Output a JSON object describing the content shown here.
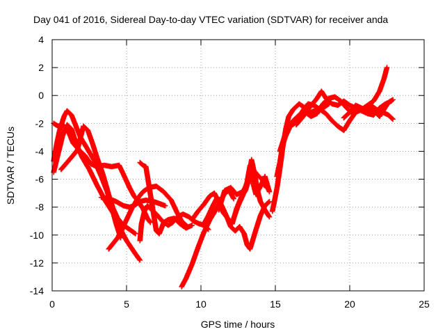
{
  "chart_data": {
    "type": "scatter",
    "title": "Day 041 of 2016, Sidereal Day-to-day VTEC variation (SDTVAR) for receiver anda",
    "xlabel": "GPS time / hours",
    "ylabel": "SDTVAR / TECUs",
    "xlim": [
      0,
      25
    ],
    "ylim": [
      -14,
      4
    ],
    "xticks": [
      0,
      5,
      10,
      15,
      20,
      25
    ],
    "yticks": [
      -14,
      -12,
      -10,
      -8,
      -6,
      -4,
      -2,
      0,
      2,
      4
    ],
    "grid": true,
    "marker": "plus",
    "color": "#ff0000",
    "series": [
      {
        "points": [
          [
            0.1,
            -4.7
          ],
          [
            0.3,
            -3.5
          ],
          [
            0.5,
            -2.5
          ],
          [
            0.8,
            -1.5
          ],
          [
            1.0,
            -1.1
          ],
          [
            1.3,
            -1.4
          ],
          [
            1.6,
            -2.2
          ],
          [
            1.9,
            -3.0
          ],
          [
            2.3,
            -3.7
          ],
          [
            2.8,
            -4.6
          ],
          [
            3.3,
            -5.8
          ],
          [
            3.7,
            -6.9
          ],
          [
            4.0,
            -8.0
          ],
          [
            4.3,
            -9.2
          ],
          [
            4.6,
            -10.2
          ]
        ]
      },
      {
        "points": [
          [
            0.1,
            -5.5
          ],
          [
            0.4,
            -4.2
          ],
          [
            0.7,
            -2.9
          ],
          [
            1.0,
            -2.1
          ],
          [
            1.3,
            -2.4
          ],
          [
            1.6,
            -3.4
          ],
          [
            2.0,
            -4.4
          ],
          [
            2.5,
            -5.3
          ],
          [
            3.0,
            -6.4
          ],
          [
            3.6,
            -7.6
          ],
          [
            4.2,
            -8.6
          ],
          [
            4.6,
            -9.6
          ],
          [
            5.0,
            -10.4
          ],
          [
            5.5,
            -11.2
          ],
          [
            5.9,
            -11.8
          ]
        ]
      },
      {
        "points": [
          [
            0.1,
            -2.0
          ],
          [
            0.4,
            -2.2
          ],
          [
            0.7,
            -2.1
          ],
          [
            0.9,
            -2.3
          ],
          [
            1.1,
            -2.6
          ],
          [
            1.4,
            -3.4
          ],
          [
            1.8,
            -3.9
          ],
          [
            2.2,
            -4.3
          ],
          [
            2.6,
            -4.9
          ],
          [
            3.0,
            -5.1
          ],
          [
            3.5,
            -5.0
          ],
          [
            4.0,
            -5.1
          ],
          [
            4.5,
            -5.0
          ],
          [
            4.9,
            -5.9
          ],
          [
            5.2,
            -6.6
          ],
          [
            5.5,
            -7.2
          ],
          [
            5.8,
            -7.6
          ],
          [
            6.1,
            -8.1
          ],
          [
            6.4,
            -8.8
          ],
          [
            6.6,
            -9.1
          ]
        ]
      },
      {
        "points": [
          [
            0.6,
            -5.3
          ],
          [
            1.0,
            -4.8
          ],
          [
            1.4,
            -4.3
          ],
          [
            1.7,
            -3.9
          ],
          [
            2.1,
            -2.2
          ],
          [
            2.4,
            -2.5
          ],
          [
            2.7,
            -3.4
          ],
          [
            3.0,
            -4.4
          ],
          [
            3.4,
            -5.6
          ],
          [
            3.8,
            -7.1
          ],
          [
            4.1,
            -8.1
          ],
          [
            4.4,
            -8.8
          ],
          [
            4.8,
            -9.3
          ],
          [
            5.2,
            -9.6
          ],
          [
            5.6,
            -9.9
          ]
        ]
      },
      {
        "points": [
          [
            3.3,
            -7.3
          ],
          [
            3.8,
            -7.4
          ],
          [
            4.3,
            -7.6
          ],
          [
            4.8,
            -7.9
          ],
          [
            5.2,
            -8.0
          ],
          [
            5.5,
            -7.9
          ],
          [
            5.9,
            -7.6
          ],
          [
            6.3,
            -7.5
          ],
          [
            6.8,
            -7.6
          ],
          [
            7.1,
            -7.7
          ],
          [
            7.6,
            -7.9
          ]
        ]
      },
      {
        "points": [
          [
            3.8,
            -11.0
          ],
          [
            4.1,
            -10.6
          ],
          [
            4.4,
            -10.2
          ],
          [
            4.7,
            -9.6
          ],
          [
            5.0,
            -8.9
          ],
          [
            5.4,
            -8.0
          ],
          [
            5.8,
            -7.3
          ],
          [
            6.1,
            -6.9
          ],
          [
            6.5,
            -6.6
          ],
          [
            7.0,
            -6.5
          ],
          [
            7.5,
            -6.9
          ],
          [
            8.0,
            -7.5
          ],
          [
            8.4,
            -8.4
          ],
          [
            8.7,
            -9.0
          ],
          [
            9.1,
            -9.4
          ]
        ]
      },
      {
        "points": [
          [
            5.9,
            -10.4
          ],
          [
            6.0,
            -9.2
          ],
          [
            6.2,
            -8.3
          ],
          [
            6.4,
            -7.9
          ],
          [
            6.7,
            -8.2
          ],
          [
            7.0,
            -8.5
          ],
          [
            7.4,
            -9.0
          ],
          [
            7.8,
            -9.3
          ],
          [
            8.1,
            -9.1
          ],
          [
            8.4,
            -8.7
          ],
          [
            8.8,
            -8.5
          ],
          [
            9.2,
            -8.7
          ],
          [
            9.5,
            -9.0
          ],
          [
            9.9,
            -9.2
          ],
          [
            10.2,
            -9.3
          ],
          [
            10.5,
            -9.6
          ]
        ]
      },
      {
        "points": [
          [
            5.9,
            -4.8
          ],
          [
            6.1,
            -5.0
          ],
          [
            6.3,
            -5.1
          ],
          [
            7.0,
            -9.7
          ],
          [
            7.2,
            -9.9
          ],
          [
            7.5,
            -9.1
          ],
          [
            7.8,
            -8.9
          ],
          [
            8.2,
            -8.8
          ],
          [
            8.6,
            -9.2
          ],
          [
            9.0,
            -9.5
          ],
          [
            9.4,
            -9.3
          ]
        ]
      },
      {
        "points": [
          [
            8.7,
            -13.7
          ],
          [
            9.0,
            -13.1
          ],
          [
            9.4,
            -12.1
          ],
          [
            9.8,
            -10.9
          ],
          [
            10.2,
            -9.8
          ],
          [
            10.6,
            -8.9
          ],
          [
            11.0,
            -8.2
          ],
          [
            11.3,
            -7.6
          ],
          [
            11.6,
            -7.0
          ],
          [
            11.9,
            -6.8
          ],
          [
            12.2,
            -7.4
          ]
        ]
      },
      {
        "points": [
          [
            9.4,
            -8.9
          ],
          [
            9.8,
            -8.3
          ],
          [
            10.2,
            -7.8
          ],
          [
            10.6,
            -7.2
          ],
          [
            10.9,
            -7.0
          ],
          [
            11.2,
            -7.6
          ],
          [
            11.5,
            -8.4
          ],
          [
            11.8,
            -8.8
          ],
          [
            12.1,
            -9.2
          ],
          [
            12.4,
            -8.1
          ],
          [
            12.7,
            -7.3
          ],
          [
            13.0,
            -6.8
          ],
          [
            13.2,
            -6.0
          ],
          [
            13.4,
            -4.6
          ],
          [
            13.6,
            -5.6
          ],
          [
            13.8,
            -6.8
          ],
          [
            14.0,
            -7.6
          ],
          [
            14.3,
            -8.2
          ],
          [
            14.6,
            -8.7
          ]
        ]
      },
      {
        "points": [
          [
            10.2,
            -9.2
          ],
          [
            10.5,
            -8.6
          ],
          [
            10.8,
            -7.9
          ],
          [
            11.1,
            -7.3
          ],
          [
            11.4,
            -7.9
          ],
          [
            11.7,
            -8.6
          ],
          [
            12.0,
            -9.4
          ],
          [
            12.3,
            -9.7
          ],
          [
            12.6,
            -9.4
          ],
          [
            12.9,
            -9.9
          ],
          [
            13.1,
            -10.7
          ],
          [
            13.3,
            -11.0
          ],
          [
            13.5,
            -10.3
          ],
          [
            13.7,
            -9.6
          ],
          [
            14.0,
            -8.6
          ],
          [
            14.3,
            -7.9
          ],
          [
            14.6,
            -7.6
          ]
        ]
      },
      {
        "points": [
          [
            11.2,
            -8.2
          ],
          [
            11.6,
            -6.8
          ],
          [
            12.0,
            -6.6
          ],
          [
            12.4,
            -7.1
          ],
          [
            12.8,
            -6.9
          ],
          [
            13.2,
            -6.2
          ],
          [
            13.5,
            -5.3
          ],
          [
            13.8,
            -5.7
          ],
          [
            14.1,
            -6.0
          ],
          [
            14.4,
            -6.6
          ]
        ]
      },
      {
        "points": [
          [
            12.2,
            -8.8
          ],
          [
            12.5,
            -7.9
          ],
          [
            12.8,
            -7.2
          ],
          [
            13.1,
            -6.2
          ],
          [
            13.3,
            -5.0
          ],
          [
            13.5,
            -6.3
          ],
          [
            13.7,
            -7.1
          ],
          [
            14.0,
            -6.5
          ],
          [
            14.3,
            -5.8
          ],
          [
            14.6,
            -6.9
          ]
        ]
      },
      {
        "points": [
          [
            14.8,
            -8.3
          ],
          [
            15.1,
            -6.7
          ],
          [
            15.3,
            -5.3
          ],
          [
            15.5,
            -3.7
          ],
          [
            15.7,
            -2.4
          ],
          [
            15.9,
            -1.5
          ],
          [
            16.2,
            -1.0
          ],
          [
            16.6,
            -0.6
          ],
          [
            17.0,
            -0.9
          ],
          [
            17.4,
            -1.2
          ],
          [
            17.8,
            -1.0
          ],
          [
            18.2,
            -0.9
          ],
          [
            18.6,
            -0.6
          ]
        ]
      },
      {
        "points": [
          [
            15.1,
            -5.8
          ],
          [
            15.3,
            -4.8
          ],
          [
            15.5,
            -3.5
          ],
          [
            15.7,
            -2.9
          ],
          [
            16.0,
            -2.2
          ],
          [
            16.3,
            -2.0
          ],
          [
            16.6,
            -1.5
          ],
          [
            16.9,
            -1.0
          ],
          [
            17.2,
            -0.6
          ],
          [
            17.6,
            -0.7
          ],
          [
            18.0,
            -1.0
          ],
          [
            18.4,
            -1.3
          ],
          [
            18.8,
            -1.8
          ],
          [
            19.2,
            -2.2
          ],
          [
            19.6,
            -2.5
          ],
          [
            20.0,
            -1.8
          ],
          [
            20.4,
            -1.2
          ],
          [
            20.8,
            -1.0
          ],
          [
            21.2,
            -0.7
          ],
          [
            21.6,
            -0.4
          ],
          [
            22.0,
            0.3
          ],
          [
            22.3,
            1.2
          ],
          [
            22.5,
            2.0
          ]
        ]
      },
      {
        "points": [
          [
            15.3,
            -4.0
          ],
          [
            15.6,
            -3.0
          ],
          [
            15.9,
            -2.4
          ],
          [
            16.2,
            -1.8
          ],
          [
            16.6,
            -1.4
          ],
          [
            17.0,
            -1.2
          ],
          [
            17.4,
            -1.5
          ],
          [
            17.8,
            -1.3
          ],
          [
            18.2,
            -0.6
          ],
          [
            18.6,
            -0.2
          ],
          [
            19.0,
            -0.1
          ],
          [
            19.4,
            -0.4
          ],
          [
            19.8,
            -0.9
          ],
          [
            20.2,
            -1.3
          ],
          [
            20.6,
            -1.1
          ],
          [
            21.0,
            -0.9
          ],
          [
            21.4,
            -0.7
          ],
          [
            21.8,
            -1.0
          ],
          [
            22.2,
            -1.2
          ],
          [
            22.6,
            -1.4
          ],
          [
            22.9,
            -1.7
          ]
        ]
      },
      {
        "points": [
          [
            16.4,
            -2.1
          ],
          [
            16.8,
            -1.6
          ],
          [
            17.2,
            -1.0
          ],
          [
            17.5,
            -0.6
          ],
          [
            17.8,
            -0.2
          ],
          [
            18.1,
            0.3
          ],
          [
            18.4,
            -0.2
          ],
          [
            18.8,
            -0.6
          ],
          [
            19.2,
            -0.7
          ],
          [
            19.6,
            -0.4
          ],
          [
            20.0,
            -0.7
          ],
          [
            20.4,
            -0.9
          ],
          [
            20.8,
            -1.1
          ],
          [
            21.2,
            -1.3
          ],
          [
            21.6,
            -1.4
          ],
          [
            22.0,
            -0.9
          ],
          [
            22.4,
            -0.6
          ],
          [
            22.8,
            -0.4
          ]
        ]
      },
      {
        "points": [
          [
            19.6,
            -1.6
          ],
          [
            20.0,
            -1.2
          ],
          [
            20.4,
            -0.7
          ],
          [
            20.8,
            -0.9
          ],
          [
            21.2,
            -1.1
          ],
          [
            21.6,
            -1.0
          ],
          [
            22.0,
            -1.5
          ],
          [
            22.3,
            -1.0
          ],
          [
            22.6,
            -0.5
          ],
          [
            22.9,
            -0.3
          ]
        ]
      }
    ]
  }
}
